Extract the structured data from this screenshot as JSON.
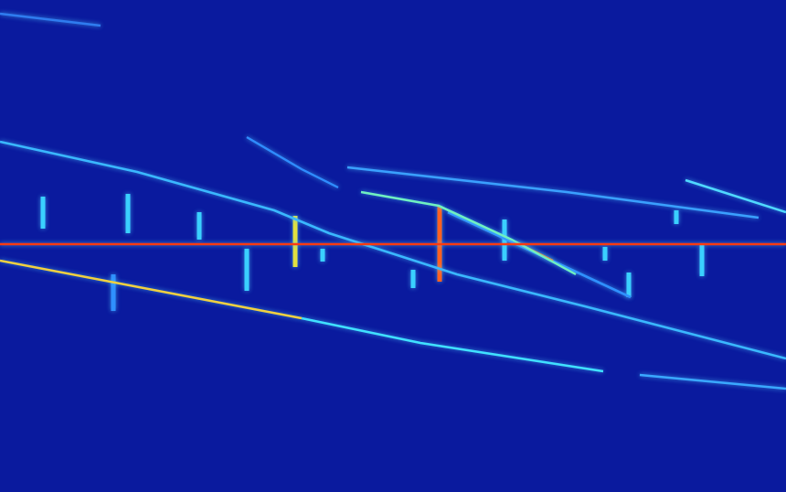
{
  "chart_data": {
    "type": "line",
    "grid": false,
    "tick_labels": false,
    "xlim": [
      0,
      860
    ],
    "ylim": [
      0,
      538
    ],
    "series": [
      {
        "color": "#ff3a10",
        "x": [
          0,
          860
        ],
        "values": [
          271,
          271
        ]
      },
      {
        "color": "#f0d040",
        "x": [
          0,
          330
        ],
        "values": [
          253,
          190
        ]
      },
      {
        "color": "#40e0ff",
        "x": [
          330,
          460,
          660
        ],
        "values": [
          190,
          163,
          132
        ]
      },
      {
        "color": "#3aa8ff",
        "x": [
          700,
          860
        ],
        "values": [
          128,
          113
        ]
      },
      {
        "color": "#3ab8ff",
        "x": [
          0,
          150,
          300,
          360,
          500,
          640,
          860
        ],
        "values": [
          383,
          350,
          308,
          283,
          238,
          203,
          146
        ]
      },
      {
        "color": "#70f0c0",
        "x": [
          395,
          480,
          560,
          630
        ],
        "values": [
          328,
          313,
          276,
          238
        ]
      },
      {
        "color": "#ff8020",
        "x": [
          565,
          605
        ],
        "values": [
          273,
          253
        ]
      },
      {
        "color": "#2f90ff",
        "x": [
          490,
          690
        ],
        "values": [
          306,
          213
        ]
      },
      {
        "color": "#3aa0ff",
        "x": [
          380,
          620,
          830
        ],
        "values": [
          355,
          328,
          300
        ]
      },
      {
        "color": "#50d8ff",
        "x": [
          750,
          860
        ],
        "values": [
          341,
          306
        ]
      },
      {
        "color": "#2f8cff",
        "x": [
          270,
          330,
          370
        ],
        "values": [
          388,
          353,
          333
        ]
      },
      {
        "color": "#2f7cf0",
        "x": [
          0,
          110
        ],
        "values": [
          523,
          510
        ]
      }
    ],
    "echoes": [
      {
        "color": "#3ad0ff",
        "x": 47,
        "values": [
          323,
          288
        ]
      },
      {
        "color": "#2f90ff",
        "x": 124,
        "values": [
          238,
          198
        ]
      },
      {
        "color": "#3ad0ff",
        "x": 140,
        "values": [
          326,
          283
        ]
      },
      {
        "color": "#3ad0ff",
        "x": 218,
        "values": [
          306,
          276
        ]
      },
      {
        "color": "#3ad0ff",
        "x": 270,
        "values": [
          266,
          220
        ]
      },
      {
        "color": "#e0e040",
        "x": 323,
        "values": [
          302,
          246
        ]
      },
      {
        "color": "#3ad0ff",
        "x": 353,
        "values": [
          266,
          252
        ]
      },
      {
        "color": "#3ad0ff",
        "x": 452,
        "values": [
          243,
          223
        ]
      },
      {
        "color": "#ff6020",
        "x": 481,
        "values": [
          313,
          230
        ]
      },
      {
        "color": "#3ad0ff",
        "x": 552,
        "values": [
          298,
          253
        ]
      },
      {
        "color": "#3ad0ff",
        "x": 662,
        "values": [
          268,
          253
        ]
      },
      {
        "color": "#3ad0ff",
        "x": 688,
        "values": [
          240,
          213
        ]
      },
      {
        "color": "#3ad0ff",
        "x": 740,
        "values": [
          308,
          293
        ]
      },
      {
        "color": "#3ad0ff",
        "x": 768,
        "values": [
          270,
          236
        ]
      }
    ]
  }
}
